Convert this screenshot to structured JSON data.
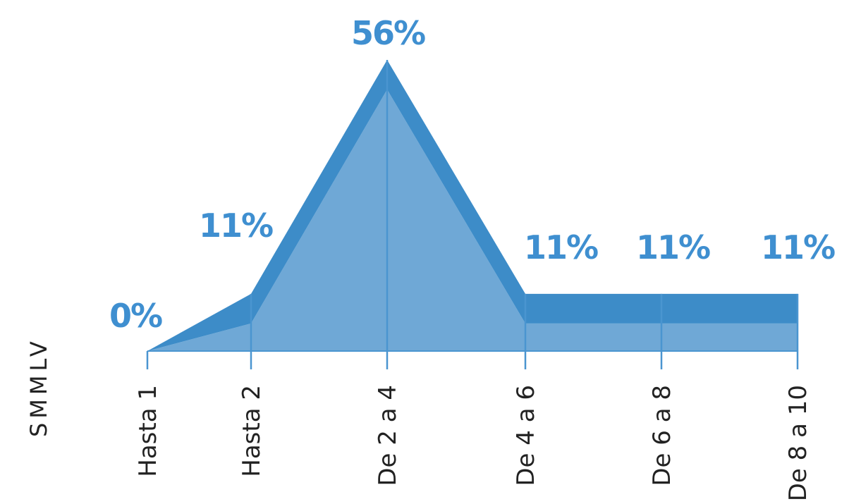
{
  "chart_data": {
    "type": "area",
    "categories": [
      "Hasta 1",
      "Hasta 2",
      "De 2 a 4",
      "De 4 a 6",
      "De 6 a 8",
      "De 8 a 10"
    ],
    "values": [
      0,
      11,
      56,
      11,
      11,
      11
    ],
    "value_labels": [
      "0%",
      "11%",
      "56%",
      "11%",
      "11%",
      "11%"
    ],
    "ylabel": "SMMLV",
    "ylim": [
      0,
      56
    ],
    "grid": false,
    "legend": "none",
    "colors": {
      "fill": "#6fa8d6",
      "band": "#3d8cc8",
      "line": "#4a95d0",
      "label": "#3f8fd0"
    }
  }
}
